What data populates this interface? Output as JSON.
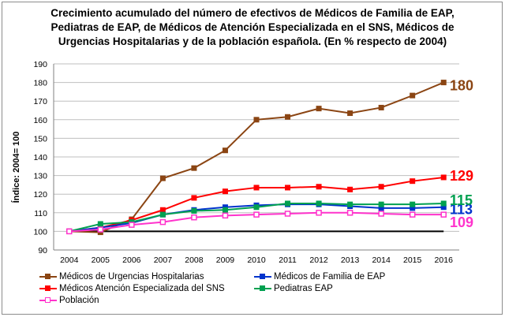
{
  "title_lines": [
    "Crecimiento acumulado del número de efectivos de Médicos de Familia de EAP,",
    "Pediatras de EAP, de Médicos de Atención Especializada en el SNS, Médicos de",
    "Urgencias Hospitalarias y de la población española. (En % respecto de 2004)"
  ],
  "chart_data": {
    "type": "line",
    "ylabel": "Índice: 2004= 100",
    "ylim": [
      90,
      190
    ],
    "yticks": [
      90,
      100,
      110,
      120,
      130,
      140,
      150,
      160,
      170,
      180,
      190
    ],
    "categories": [
      "2004",
      "2005",
      "2006",
      "2007",
      "2008",
      "2009",
      "2010",
      "2011",
      "2012",
      "2013",
      "2014",
      "2015",
      "2016"
    ],
    "reference_line": 100,
    "grid": true,
    "legend_position": "bottom",
    "series": [
      {
        "name": "Médicos de Urgencias Hospitalarias",
        "color": "#8B4513",
        "marker": "square",
        "values": [
          100,
          99.5,
          106.5,
          128.5,
          134,
          143.5,
          160,
          161.5,
          166,
          163.5,
          166.5,
          173,
          180
        ],
        "end_label": "180"
      },
      {
        "name": "Médicos Atención Especializada del SNS",
        "color": "#FF0000",
        "marker": "square",
        "values": [
          100,
          102,
          106,
          111.5,
          118,
          121.5,
          123.5,
          123.5,
          124,
          122.5,
          124,
          127,
          129
        ],
        "end_label": "129"
      },
      {
        "name": "Médicos de Familia de EAP",
        "color": "#0033CC",
        "marker": "square",
        "values": [
          100,
          102,
          104.5,
          109,
          111.5,
          113,
          114,
          114.5,
          114.5,
          113.5,
          112.5,
          112.5,
          113
        ],
        "end_label": "113"
      },
      {
        "name": "Pediatras EAP",
        "color": "#00A050",
        "marker": "square",
        "values": [
          100,
          104,
          105,
          109,
          111,
          111.5,
          113,
          115,
          115,
          114.5,
          114.5,
          114.5,
          115
        ],
        "end_label": "115"
      },
      {
        "name": "Población",
        "color": "#FF33CC",
        "marker": "square-open",
        "values": [
          100,
          101,
          103.5,
          105,
          107.5,
          108.5,
          109,
          109.5,
          110,
          110,
          109.5,
          109,
          109
        ],
        "end_label": "109"
      }
    ]
  }
}
